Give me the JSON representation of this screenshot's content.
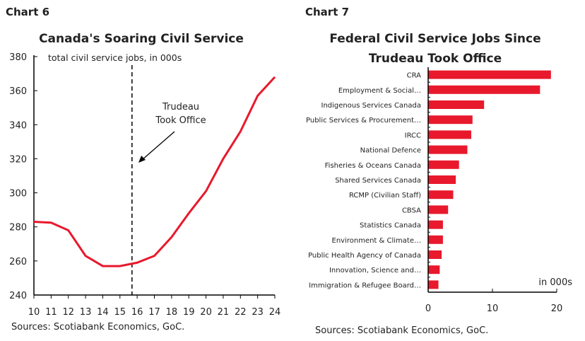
{
  "charts_header": [
    "Chart 6",
    "Chart 7"
  ],
  "chart_data": [
    {
      "type": "line",
      "title": "Canada's Soaring Civil Service",
      "subtitle": "total civil service jobs, in 000s",
      "x": [
        10,
        11,
        12,
        13,
        14,
        15,
        16,
        17,
        18,
        19,
        20,
        21,
        22,
        23,
        24
      ],
      "values": [
        283,
        282.5,
        278,
        263,
        257,
        257,
        259,
        263,
        274,
        288,
        301,
        320,
        336,
        357,
        368
      ],
      "ylim": [
        240,
        380
      ],
      "yticks": [
        240,
        260,
        280,
        300,
        320,
        340,
        360,
        380
      ],
      "xlim": [
        10,
        24
      ],
      "annotation": {
        "text": [
          "Trudeau",
          "Took Office"
        ],
        "x": 15.7
      },
      "color": "#e8192c",
      "source": "Sources: Scotiabank Economics, GoC."
    },
    {
      "type": "bar",
      "orientation": "horizontal",
      "title": [
        "Federal Civil Service Jobs Since",
        "Trudeau Took Office"
      ],
      "categories": [
        "CRA",
        "Employment & Social…",
        "Indigenous Services Canada",
        "Public Services & Procurement…",
        "IRCC",
        "National Defence",
        "Fisheries & Oceans Canada",
        "Shared Services Canada",
        "RCMP (Civilian Staff)",
        "CBSA",
        "Statistics Canada",
        "Environment & Climate…",
        "Public Health Agency of Canada",
        "Innovation, Science and…",
        "Immigration & Refugee Board…"
      ],
      "values": [
        19.1,
        17.4,
        8.7,
        6.9,
        6.7,
        6.1,
        4.8,
        4.3,
        3.9,
        3.1,
        2.3,
        2.3,
        2.1,
        1.8,
        1.6
      ],
      "xlim": [
        0,
        20
      ],
      "xticks": [
        0,
        10,
        20
      ],
      "unit_label": "in 000s",
      "color": "#e8192c",
      "source": "Sources: Scotiabank Economics, GoC."
    }
  ]
}
